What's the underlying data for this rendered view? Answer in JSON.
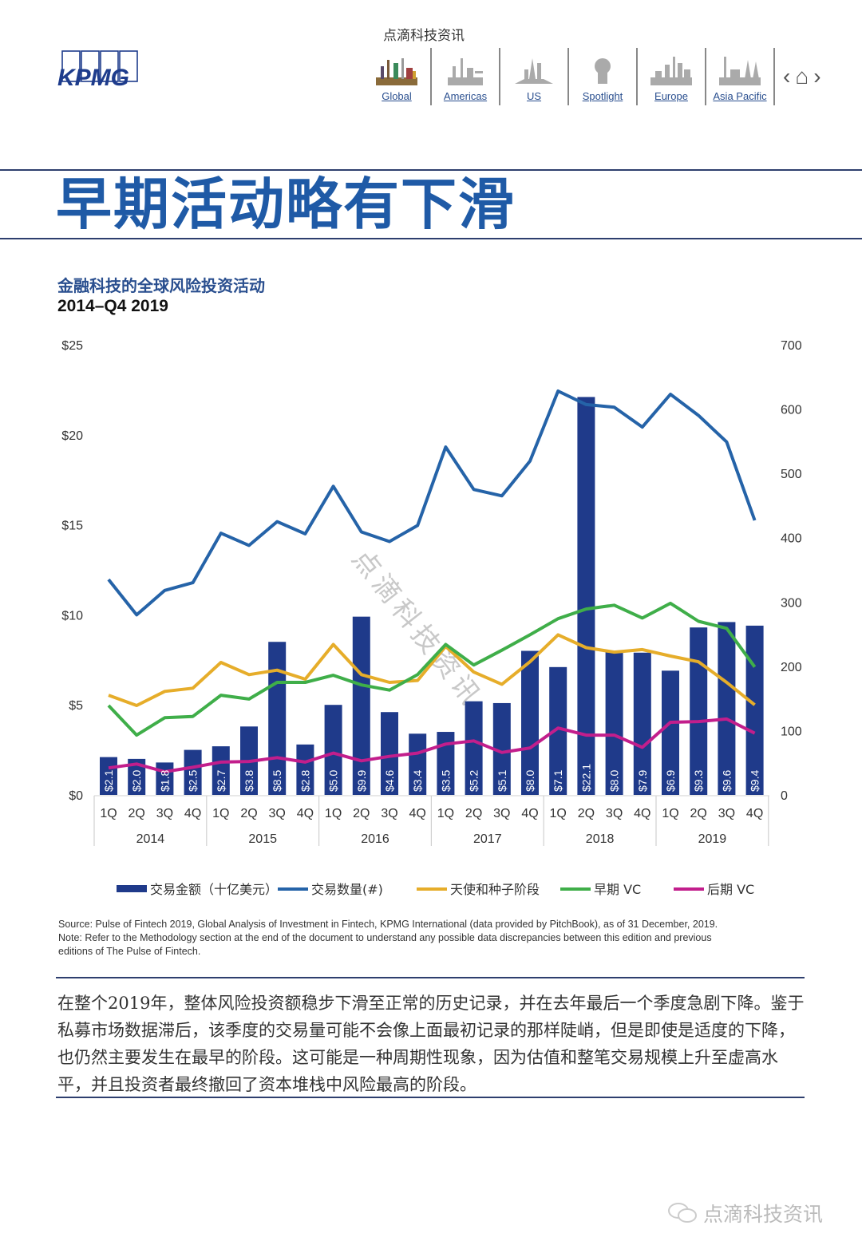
{
  "header": {
    "top_caption": "点滴科技资讯",
    "logo_text": "KPMG",
    "nav": [
      {
        "label": "Global",
        "icon": "global-skyline-icon"
      },
      {
        "label": "Americas",
        "icon": "americas-skyline-icon"
      },
      {
        "label": "US",
        "icon": "us-skyline-icon"
      },
      {
        "label": "Spotlight",
        "icon": "spotlight-bust-icon"
      },
      {
        "label": "Europe",
        "icon": "europe-skyline-icon"
      },
      {
        "label": "Asia Pacific",
        "icon": "asia-pacific-skyline-icon"
      }
    ],
    "controls": {
      "prev": "‹",
      "home": "⌂",
      "next": "›"
    }
  },
  "headline": "早期活动略有下滑",
  "chart_header": {
    "title": "金融科技的全球风险投资活动",
    "subtitle": "2014–Q4 2019"
  },
  "chart_data": {
    "type": "bar",
    "title": "金融科技的全球风险投资活动",
    "subtitle": "2014–Q4 2019",
    "categories": [
      "1Q",
      "2Q",
      "3Q",
      "4Q",
      "1Q",
      "2Q",
      "3Q",
      "4Q",
      "1Q",
      "2Q",
      "3Q",
      "4Q",
      "1Q",
      "2Q",
      "3Q",
      "4Q",
      "1Q",
      "2Q",
      "3Q",
      "4Q",
      "1Q",
      "2Q",
      "3Q",
      "4Q"
    ],
    "years": [
      "2014",
      "2015",
      "2016",
      "2017",
      "2018",
      "2019"
    ],
    "y_left": {
      "label": "",
      "ticks": [
        "$0",
        "$5",
        "$10",
        "$15",
        "$20",
        "$25"
      ],
      "range": [
        0,
        25
      ]
    },
    "y_right": {
      "label": "",
      "ticks": [
        "0",
        "100",
        "200",
        "300",
        "400",
        "500",
        "600",
        "700"
      ],
      "range": [
        0,
        700
      ]
    },
    "grid": false,
    "legend_position": "bottom",
    "series": [
      {
        "name": "交易金额（十亿美元）",
        "type": "bar",
        "axis": "left",
        "color": "#1f3a8a",
        "values": [
          2.1,
          2.0,
          1.8,
          2.5,
          2.7,
          3.8,
          8.5,
          2.8,
          5.0,
          9.9,
          4.6,
          3.4,
          3.5,
          5.2,
          5.1,
          8.0,
          7.1,
          22.1,
          8.0,
          7.9,
          6.9,
          9.3,
          9.6,
          9.4
        ],
        "labels": [
          "$2.1",
          "$2.0",
          "$1.8",
          "$2.5",
          "$2.7",
          "$3.8",
          "$8.5",
          "$2.8",
          "$5.0",
          "$9.9",
          "$4.6",
          "$3.4",
          "$3.5",
          "$5.2",
          "$5.1",
          "$8.0",
          "$7.1",
          "$22.1",
          "$8.0",
          "$7.9",
          "$6.9",
          "$9.3",
          "$9.6",
          "$9.4"
        ]
      },
      {
        "name": "交易数量(#)",
        "type": "line",
        "axis": "right",
        "color": "#2563a8",
        "values": [
          335,
          280,
          318,
          330,
          407,
          388,
          425,
          406,
          480,
          409,
          394,
          419,
          541,
          475,
          465,
          519,
          628,
          607,
          603,
          572,
          623,
          590,
          549,
          427
        ]
      },
      {
        "name": "天使和种子阶段",
        "type": "line",
        "axis": "right",
        "color": "#e6ad2a",
        "values": [
          155,
          139,
          161,
          166,
          206,
          187,
          194,
          180,
          234,
          187,
          175,
          178,
          231,
          191,
          172,
          207,
          249,
          229,
          222,
          226,
          216,
          207,
          175,
          140
        ]
      },
      {
        "name": "早期 VC",
        "type": "line",
        "axis": "right",
        "color": "#3fae49",
        "values": [
          139,
          93,
          120,
          122,
          155,
          149,
          175,
          175,
          186,
          171,
          163,
          187,
          234,
          202,
          225,
          249,
          274,
          289,
          295,
          275,
          298,
          270,
          259,
          199
        ]
      },
      {
        "name": "后期 VC",
        "type": "line",
        "axis": "right",
        "color": "#c21e8c",
        "values": [
          42,
          48,
          36,
          43,
          51,
          52,
          58,
          51,
          65,
          53,
          60,
          65,
          79,
          84,
          66,
          73,
          104,
          93,
          93,
          74,
          113,
          114,
          118,
          96
        ]
      }
    ],
    "watermark": "点滴科技资讯"
  },
  "source_note": {
    "line1": "Source: Pulse of Fintech 2019, Global Analysis of Investment in Fintech, KPMG International (data provided by PitchBook), as of 31 December, 2019.",
    "line2": "Note: Refer to the Methodology section at the end of the document to understand any possible data discrepancies between this edition and previous",
    "line3": "editions of The Pulse of Fintech."
  },
  "body_text": "在整个2019年，整体风险投资额稳步下滑至正常的历史记录，并在去年最后一个季度急剧下降。鉴于私募市场数据滞后，该季度的交易量可能不会像上面最初记录的那样陡峭，但是即使是适度的下降，也仍然主要发生在最早的阶段。这可能是一种周期性现象，因为估值和整笔交易规模上升至虚高水平，并且投资者最终撤回了资本堆栈中风险最高的阶段。",
  "footer": {
    "wechat_label": "点滴科技资讯",
    "icon": "wechat-icon"
  }
}
